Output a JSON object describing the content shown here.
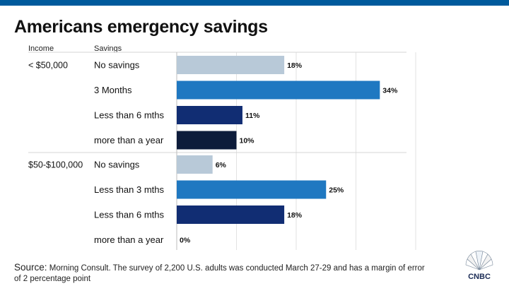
{
  "title": "Americans emergency savings",
  "headers": {
    "income": "Income",
    "savings": "Savings"
  },
  "source": {
    "label": "Source:",
    "text": "Morning Consult. The survey of 2,200 U.S. adults was conducted March 27-29 and has a margin of error of 2 percentage point"
  },
  "logo_text": "CNBC",
  "colors": {
    "no_savings": "#b8c9d8",
    "mid_blue": "#1f78c1",
    "navy": "#112d73",
    "dark_navy": "#0d1c3b",
    "top_band": "#005a9c"
  },
  "chart_data": {
    "type": "bar",
    "orientation": "horizontal",
    "value_suffix": "%",
    "xlim": [
      0,
      40
    ],
    "groups": [
      {
        "name": "< $50,000",
        "bars": [
          {
            "label": "No savings",
            "value": 18,
            "color": "#b8c9d8"
          },
          {
            "label": "3 Months",
            "value": 34,
            "color": "#1f78c1"
          },
          {
            "label": "Less than 6 mths",
            "value": 11,
            "color": "#112d73"
          },
          {
            "label": "more than a year",
            "value": 10,
            "color": "#0d1c3b"
          }
        ]
      },
      {
        "name": "$50-$100,000",
        "bars": [
          {
            "label": "No savings",
            "value": 6,
            "color": "#b8c9d8"
          },
          {
            "label": "Less than 3 mths",
            "value": 25,
            "color": "#1f78c1"
          },
          {
            "label": "Less than 6 mths",
            "value": 18,
            "color": "#112d73"
          },
          {
            "label": "more than a year",
            "value": 0,
            "color": "#0d1c3b"
          }
        ]
      }
    ]
  }
}
